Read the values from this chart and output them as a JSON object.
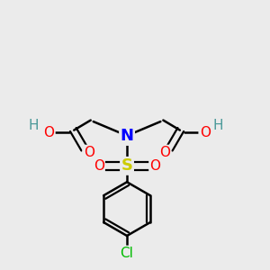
{
  "background_color": "#ebebeb",
  "atom_colors": {
    "C": "#000000",
    "H": "#4a9999",
    "O": "#ff0000",
    "N": "#0000ff",
    "S": "#cccc00",
    "Cl": "#00bb00"
  },
  "figsize": [
    3.0,
    3.0
  ],
  "dpi": 100,
  "scale": 1.0
}
